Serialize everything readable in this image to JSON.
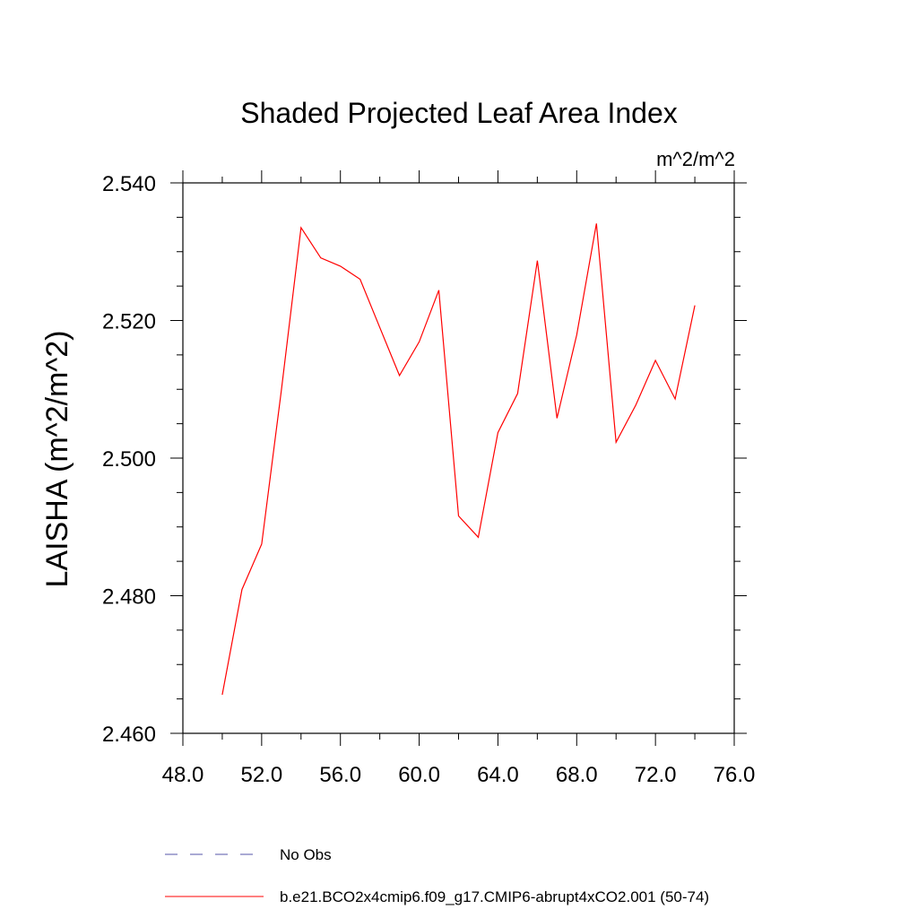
{
  "chart_data": {
    "type": "line",
    "title": "Shaded Projected Leaf Area Index",
    "units": "m^2/m^2",
    "ylabel": "LAISHA  (m^2/m^2)",
    "xlabel": "",
    "xlim": [
      48,
      76
    ],
    "ylim": [
      2.46,
      2.54
    ],
    "xticks": [
      48,
      52,
      56,
      60,
      64,
      68,
      72,
      76
    ],
    "xtick_labels": [
      "48.0",
      "52.0",
      "56.0",
      "60.0",
      "64.0",
      "68.0",
      "72.0",
      "76.0"
    ],
    "yticks": [
      2.46,
      2.48,
      2.5,
      2.52,
      2.54
    ],
    "ytick_labels": [
      "2.460",
      "2.480",
      "2.500",
      "2.520",
      "2.540"
    ],
    "series": [
      {
        "name": "b.e21.BCO2x4cmip6.f09_g17.CMIP6-abrupt4xCO2.001 (50-74)",
        "color": "#ff0000",
        "style": "solid",
        "x": [
          50,
          51,
          52,
          53,
          54,
          55,
          56,
          57,
          58,
          59,
          60,
          61,
          62,
          63,
          64,
          65,
          66,
          67,
          68,
          69,
          70,
          71,
          72,
          73,
          74
        ],
        "values": [
          2.4656,
          2.4809,
          2.4875,
          2.5098,
          2.5335,
          2.5291,
          2.5279,
          2.526,
          2.519,
          2.512,
          2.5169,
          2.5244,
          2.4916,
          2.4885,
          2.5037,
          2.5094,
          2.5287,
          2.5058,
          2.5179,
          2.5341,
          2.5023,
          2.5077,
          2.5142,
          2.5086,
          2.5222
        ]
      }
    ],
    "legend": [
      {
        "label": "No Obs",
        "color": "#5555aa",
        "style": "dashed"
      },
      {
        "label": "b.e21.BCO2x4cmip6.f09_g17.CMIP6-abrupt4xCO2.001 (50-74)",
        "color": "#ff0000",
        "style": "solid"
      }
    ]
  }
}
